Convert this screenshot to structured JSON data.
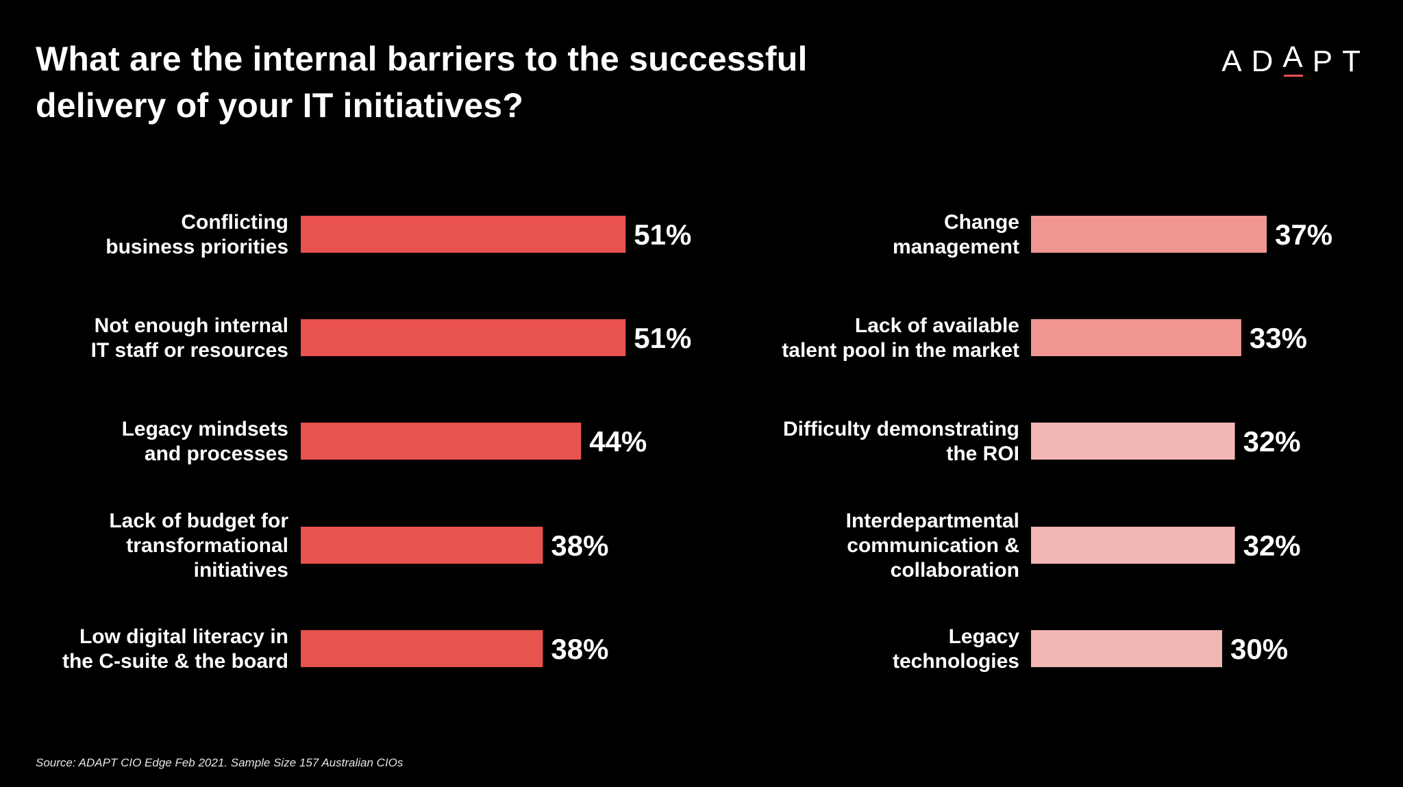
{
  "header": {
    "title_lines": [
      "What are the internal barriers to the successful",
      "delivery of your IT initiatives?"
    ],
    "logo_letters": [
      "A",
      "D",
      "A",
      "P",
      "T"
    ]
  },
  "footer": {
    "source": "Source: ADAPT CIO Edge Feb 2021. Sample Size 157 Australian CIOs"
  },
  "colors": {
    "background": "#000000",
    "accent": "#e8524f",
    "text": "#ffffff"
  },
  "chart_data": [
    {
      "type": "bar",
      "orientation": "horizontal",
      "unit": "%",
      "categories": [
        [
          "Conflicting",
          "business priorities"
        ],
        [
          "Not enough internal",
          "IT staff or resources"
        ],
        [
          "Legacy mindsets",
          "and processes"
        ],
        [
          "Lack of budget for",
          "transformational",
          "initiatives"
        ],
        [
          "Low digital literacy in",
          "the C-suite & the board"
        ]
      ],
      "values": [
        51,
        51,
        44,
        38,
        38
      ],
      "data_labels": [
        "51%",
        "51%",
        "44%",
        "38%",
        "38%"
      ],
      "colors": [
        "#e8524f",
        "#e8524f",
        "#e8524f",
        "#e8524f",
        "#e8524f"
      ]
    },
    {
      "type": "bar",
      "orientation": "horizontal",
      "unit": "%",
      "categories": [
        [
          "Change",
          "management"
        ],
        [
          "Lack of available",
          "talent pool in the market"
        ],
        [
          "Difficulty demonstrating",
          "the ROI"
        ],
        [
          "Interdepartmental",
          "communication &",
          "collaboration"
        ],
        [
          "Legacy",
          "technologies"
        ]
      ],
      "values": [
        37,
        33,
        32,
        32,
        30
      ],
      "data_labels": [
        "37%",
        "33%",
        "32%",
        "32%",
        "30%"
      ],
      "colors": [
        "#f0958f",
        "#f0958f",
        "#f2b6b3",
        "#f2b6b3",
        "#f2b6b3"
      ]
    }
  ]
}
